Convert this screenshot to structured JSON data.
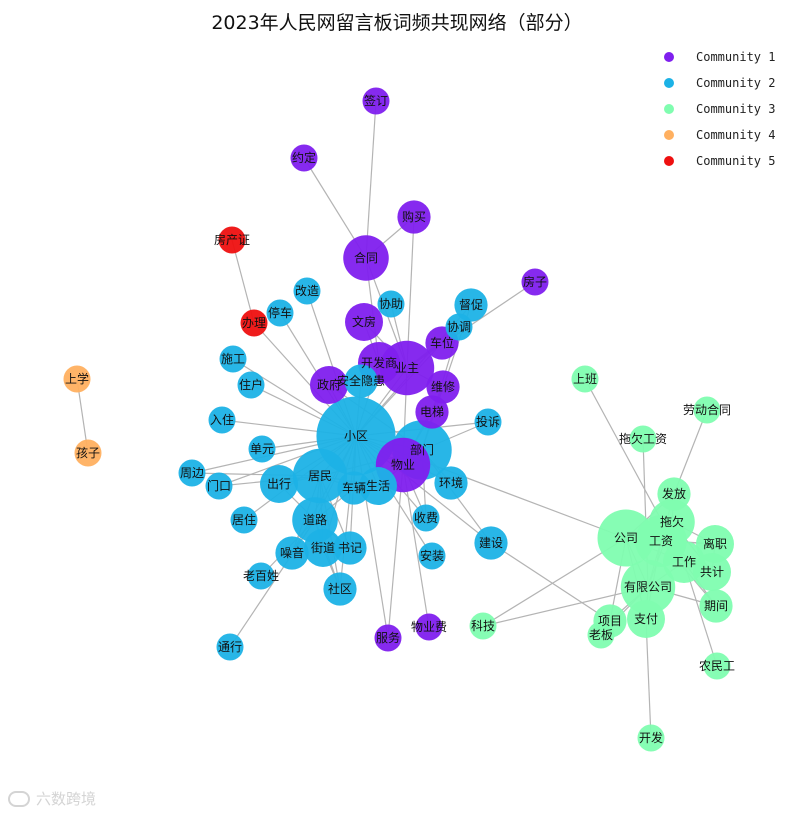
{
  "title": "2023年人民网留言板词频共现网络（部分）",
  "watermark": "六数跨境",
  "colors": {
    "Community 1": "#7f1fee",
    "Community 2": "#1cb2e6",
    "Community 3": "#80fdb0",
    "Community 4": "#ffb060",
    "Community 5": "#ee1010",
    "edge": "#b4b4b4"
  },
  "legend": [
    "Community 1",
    "Community 2",
    "Community 3",
    "Community 4",
    "Community 5"
  ],
  "nodes": [
    {
      "id": "签订",
      "c": 1,
      "w": 1
    },
    {
      "id": "约定",
      "c": 1,
      "w": 1
    },
    {
      "id": "购买",
      "c": 1,
      "w": 2
    },
    {
      "id": "合同",
      "c": 1,
      "w": 5
    },
    {
      "id": "房子",
      "c": 1,
      "w": 1
    },
    {
      "id": "文房",
      "c": 1,
      "w": 3
    },
    {
      "id": "开发商",
      "c": 1,
      "w": 4
    },
    {
      "id": "业主",
      "c": 1,
      "w": 8
    },
    {
      "id": "车位",
      "c": 1,
      "w": 2
    },
    {
      "id": "政府",
      "c": 1,
      "w": 3
    },
    {
      "id": "维修",
      "c": 1,
      "w": 2
    },
    {
      "id": "电梯",
      "c": 1,
      "w": 2
    },
    {
      "id": "物业",
      "c": 1,
      "w": 8
    },
    {
      "id": "服务",
      "c": 1,
      "w": 1
    },
    {
      "id": "物业费",
      "c": 1,
      "w": 1
    },
    {
      "id": "房产证",
      "c": 5,
      "w": 1
    },
    {
      "id": "办理",
      "c": 5,
      "w": 1
    },
    {
      "id": "上学",
      "c": 4,
      "w": 1
    },
    {
      "id": "孩子",
      "c": 4,
      "w": 1
    },
    {
      "id": "改造",
      "c": 2,
      "w": 1
    },
    {
      "id": "停车",
      "c": 2,
      "w": 1
    },
    {
      "id": "协助",
      "c": 2,
      "w": 1
    },
    {
      "id": "督促",
      "c": 2,
      "w": 2
    },
    {
      "id": "协调",
      "c": 2,
      "w": 1
    },
    {
      "id": "施工",
      "c": 2,
      "w": 1
    },
    {
      "id": "住户",
      "c": 2,
      "w": 1
    },
    {
      "id": "安全隐患",
      "c": 2,
      "w": 2
    },
    {
      "id": "入住",
      "c": 2,
      "w": 1
    },
    {
      "id": "小区",
      "c": 2,
      "w": 20
    },
    {
      "id": "部门",
      "c": 2,
      "w": 10
    },
    {
      "id": "投诉",
      "c": 2,
      "w": 1
    },
    {
      "id": "单元",
      "c": 2,
      "w": 1
    },
    {
      "id": "周边",
      "c": 2,
      "w": 1
    },
    {
      "id": "门口",
      "c": 2,
      "w": 1
    },
    {
      "id": "居民",
      "c": 2,
      "w": 8
    },
    {
      "id": "出行",
      "c": 2,
      "w": 3
    },
    {
      "id": "车辆",
      "c": 2,
      "w": 2
    },
    {
      "id": "生活",
      "c": 2,
      "w": 3
    },
    {
      "id": "环境",
      "c": 2,
      "w": 2
    },
    {
      "id": "居住",
      "c": 2,
      "w": 1
    },
    {
      "id": "道路",
      "c": 2,
      "w": 5
    },
    {
      "id": "收费",
      "c": 2,
      "w": 1
    },
    {
      "id": "噪音",
      "c": 2,
      "w": 2
    },
    {
      "id": "街道",
      "c": 2,
      "w": 3
    },
    {
      "id": "书记",
      "c": 2,
      "w": 2
    },
    {
      "id": "安装",
      "c": 2,
      "w": 1
    },
    {
      "id": "建设",
      "c": 2,
      "w": 2
    },
    {
      "id": "老百姓",
      "c": 2,
      "w": 1
    },
    {
      "id": "社区",
      "c": 2,
      "w": 2
    },
    {
      "id": "通行",
      "c": 2,
      "w": 1
    },
    {
      "id": "上班",
      "c": 3,
      "w": 1
    },
    {
      "id": "劳动合同",
      "c": 3,
      "w": 1
    },
    {
      "id": "拖欠工资",
      "c": 3,
      "w": 1
    },
    {
      "id": "发放",
      "c": 3,
      "w": 2
    },
    {
      "id": "公司",
      "c": 3,
      "w": 9
    },
    {
      "id": "拖欠",
      "c": 3,
      "w": 5
    },
    {
      "id": "工资",
      "c": 3,
      "w": 7
    },
    {
      "id": "离职",
      "c": 3,
      "w": 3
    },
    {
      "id": "工作",
      "c": 3,
      "w": 4
    },
    {
      "id": "共计",
      "c": 3,
      "w": 3
    },
    {
      "id": "有限公司",
      "c": 3,
      "w": 8
    },
    {
      "id": "期间",
      "c": 3,
      "w": 2
    },
    {
      "id": "科技",
      "c": 3,
      "w": 1
    },
    {
      "id": "项目",
      "c": 3,
      "w": 2
    },
    {
      "id": "老板",
      "c": 3,
      "w": 1
    },
    {
      "id": "支付",
      "c": 3,
      "w": 3
    },
    {
      "id": "农民工",
      "c": 3,
      "w": 1
    },
    {
      "id": "开发",
      "c": 3,
      "w": 1
    }
  ],
  "edges": [
    [
      "签订",
      "合同"
    ],
    [
      "约定",
      "合同"
    ],
    [
      "购买",
      "合同"
    ],
    [
      "购买",
      "业主"
    ],
    [
      "合同",
      "业主"
    ],
    [
      "合同",
      "开发商"
    ],
    [
      "房子",
      "业主"
    ],
    [
      "文房",
      "业主"
    ],
    [
      "文房",
      "开发商"
    ],
    [
      "开发商",
      "业主"
    ],
    [
      "开发商",
      "小区"
    ],
    [
      "业主",
      "物业"
    ],
    [
      "业主",
      "小区"
    ],
    [
      "业主",
      "车位"
    ],
    [
      "业主",
      "维修"
    ],
    [
      "业主",
      "协调"
    ],
    [
      "业主",
      "协助"
    ],
    [
      "车位",
      "小区"
    ],
    [
      "政府",
      "小区"
    ],
    [
      "政府",
      "部门"
    ],
    [
      "维修",
      "物业"
    ],
    [
      "维修",
      "电梯"
    ],
    [
      "电梯",
      "物业"
    ],
    [
      "物业",
      "小区"
    ],
    [
      "物业",
      "收费"
    ],
    [
      "物业",
      "服务"
    ],
    [
      "物业",
      "物业费"
    ],
    [
      "物业",
      "部门"
    ],
    [
      "房产证",
      "办理"
    ],
    [
      "办理",
      "小区"
    ],
    [
      "上学",
      "孩子"
    ],
    [
      "改造",
      "小区"
    ],
    [
      "停车",
      "小区"
    ],
    [
      "督促",
      "部门"
    ],
    [
      "督促",
      "小区"
    ],
    [
      "协调",
      "部门"
    ],
    [
      "施工",
      "小区"
    ],
    [
      "住户",
      "小区"
    ],
    [
      "安全隐患",
      "小区"
    ],
    [
      "入住",
      "小区"
    ],
    [
      "小区",
      "部门"
    ],
    [
      "小区",
      "投诉"
    ],
    [
      "小区",
      "单元"
    ],
    [
      "小区",
      "周边"
    ],
    [
      "小区",
      "门口"
    ],
    [
      "小区",
      "居民"
    ],
    [
      "小区",
      "出行"
    ],
    [
      "小区",
      "车辆"
    ],
    [
      "小区",
      "生活"
    ],
    [
      "小区",
      "环境"
    ],
    [
      "小区",
      "居住"
    ],
    [
      "小区",
      "道路"
    ],
    [
      "小区",
      "收费"
    ],
    [
      "小区",
      "安装"
    ],
    [
      "小区",
      "建设"
    ],
    [
      "小区",
      "公司"
    ],
    [
      "小区",
      "社区"
    ],
    [
      "小区",
      "噪音"
    ],
    [
      "小区",
      "街道"
    ],
    [
      "小区",
      "书记"
    ],
    [
      "小区",
      "服务"
    ],
    [
      "部门",
      "投诉"
    ],
    [
      "部门",
      "居民"
    ],
    [
      "部门",
      "环境"
    ],
    [
      "部门",
      "生活"
    ],
    [
      "部门",
      "收费"
    ],
    [
      "部门",
      "建设"
    ],
    [
      "居民",
      "出行"
    ],
    [
      "居民",
      "生活"
    ],
    [
      "居民",
      "道路"
    ],
    [
      "居民",
      "车辆"
    ],
    [
      "居民",
      "周边"
    ],
    [
      "居民",
      "噪音"
    ],
    [
      "居民",
      "街道"
    ],
    [
      "居民",
      "社区"
    ],
    [
      "居民",
      "书记"
    ],
    [
      "居民",
      "门口"
    ],
    [
      "道路",
      "出行"
    ],
    [
      "道路",
      "车辆"
    ],
    [
      "道路",
      "通行"
    ],
    [
      "道路",
      "老百姓"
    ],
    [
      "道路",
      "街道"
    ],
    [
      "道路",
      "社区"
    ],
    [
      "道路",
      "书记"
    ],
    [
      "道路",
      "噪音"
    ],
    [
      "街道",
      "书记"
    ],
    [
      "街道",
      "社区"
    ],
    [
      "建设",
      "项目"
    ],
    [
      "上班",
      "工作"
    ],
    [
      "劳动合同",
      "发放"
    ],
    [
      "拖欠工资",
      "有限公司"
    ],
    [
      "发放",
      "工资"
    ],
    [
      "发放",
      "拖欠"
    ],
    [
      "公司",
      "工资"
    ],
    [
      "公司",
      "拖欠"
    ],
    [
      "公司",
      "有限公司"
    ],
    [
      "公司",
      "工作"
    ],
    [
      "公司",
      "离职"
    ],
    [
      "公司",
      "支付"
    ],
    [
      "公司",
      "发放"
    ],
    [
      "公司",
      "项目"
    ],
    [
      "公司",
      "科技"
    ],
    [
      "拖欠",
      "工资"
    ],
    [
      "拖欠",
      "有限公司"
    ],
    [
      "拖欠",
      "离职"
    ],
    [
      "拖欠",
      "共计"
    ],
    [
      "工资",
      "工作"
    ],
    [
      "工资",
      "有限公司"
    ],
    [
      "工资",
      "支付"
    ],
    [
      "工资",
      "期间"
    ],
    [
      "工资",
      "离职"
    ],
    [
      "工资",
      "共计"
    ],
    [
      "工作",
      "有限公司"
    ],
    [
      "工作",
      "期间"
    ],
    [
      "工作",
      "共计"
    ],
    [
      "工作",
      "农民工"
    ],
    [
      "有限公司",
      "科技"
    ],
    [
      "有限公司",
      "支付"
    ],
    [
      "有限公司",
      "项目"
    ],
    [
      "有限公司",
      "老板"
    ],
    [
      "有限公司",
      "期间"
    ],
    [
      "支付",
      "开发"
    ],
    [
      "项目",
      "老板"
    ],
    [
      "共计",
      "离职"
    ]
  ]
}
